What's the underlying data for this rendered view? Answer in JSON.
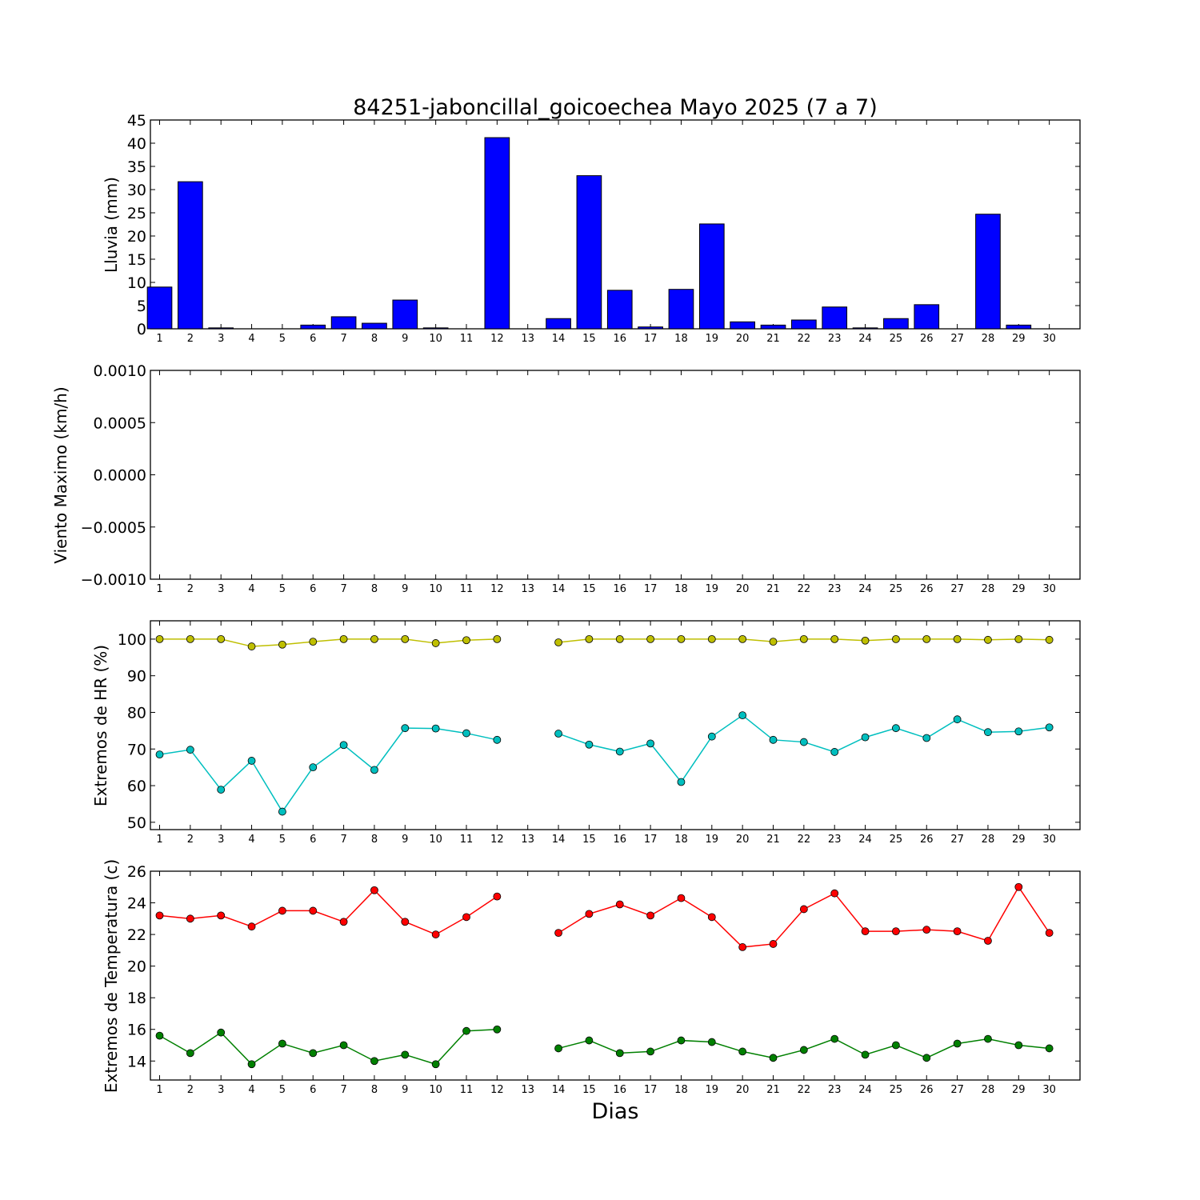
{
  "title": "84251-jaboncillal_goicoechea Mayo 2025  (7 a 7)",
  "xlabel": "Dias",
  "days": [
    1,
    2,
    3,
    4,
    5,
    6,
    7,
    8,
    9,
    10,
    11,
    12,
    13,
    14,
    15,
    16,
    17,
    18,
    19,
    20,
    21,
    22,
    23,
    24,
    25,
    26,
    27,
    28,
    29,
    30
  ],
  "colors": {
    "rain": "#0000ff",
    "hr_max": "#bfbf00",
    "hr_min": "#00bfbf",
    "temp_max": "#ff0000",
    "temp_min": "#008000"
  },
  "chart_data": [
    {
      "type": "bar",
      "ylabel": "Lluvia (mm)",
      "ylim": [
        0,
        45
      ],
      "yticks": [
        "0",
        "5",
        "10",
        "15",
        "20",
        "25",
        "30",
        "35",
        "40",
        "45"
      ],
      "categories": [
        1,
        2,
        3,
        4,
        5,
        6,
        7,
        8,
        9,
        10,
        11,
        12,
        13,
        14,
        15,
        16,
        17,
        18,
        19,
        20,
        21,
        22,
        23,
        24,
        25,
        26,
        27,
        28,
        29,
        30
      ],
      "values": [
        9.0,
        31.7,
        0.2,
        0,
        0,
        0.8,
        2.6,
        1.2,
        6.2,
        0.2,
        0,
        41.2,
        0,
        2.2,
        33.0,
        8.3,
        0.4,
        8.5,
        22.6,
        1.5,
        0.8,
        1.9,
        4.7,
        0.2,
        2.2,
        5.2,
        0,
        24.7,
        0.8,
        0
      ]
    },
    {
      "type": "line",
      "ylabel": "Viento Maximo (km/h)",
      "ylim": [
        -0.001,
        0.001
      ],
      "yticks": [
        "0.0010",
        "0.0005",
        "0.0000",
        "−0.0005",
        "−0.0010"
      ],
      "series": []
    },
    {
      "type": "line",
      "ylabel": "Extremos de HR (%)",
      "ylim": [
        48,
        105
      ],
      "yticks": [
        "50",
        "60",
        "70",
        "80",
        "90",
        "100"
      ],
      "series": [
        {
          "values": [
            100,
            100,
            100,
            98,
            98.5,
            99.3,
            100,
            100,
            100,
            98.9,
            99.7,
            100,
            null,
            99.1,
            100,
            100,
            100,
            100,
            100,
            100,
            99.3,
            100,
            100,
            99.6,
            100,
            100,
            100,
            99.8,
            100,
            99.8
          ]
        },
        {
          "values": [
            68.5,
            69.8,
            58.9,
            66.8,
            52.9,
            65.0,
            71.1,
            64.3,
            75.7,
            75.6,
            74.3,
            72.5,
            null,
            74.2,
            71.2,
            69.3,
            71.5,
            61.0,
            73.4,
            79.2,
            72.5,
            71.9,
            69.2,
            73.2,
            75.7,
            73.0,
            78.1,
            74.6,
            74.8,
            75.9
          ]
        }
      ]
    },
    {
      "type": "line",
      "ylabel": "Extremos de Temperatura (c)",
      "ylim": [
        12.8,
        26
      ],
      "yticks": [
        "14",
        "16",
        "18",
        "20",
        "22",
        "24",
        "26"
      ],
      "series": [
        {
          "values": [
            23.2,
            23.0,
            23.2,
            22.5,
            23.5,
            23.5,
            22.8,
            24.8,
            22.8,
            22.0,
            23.1,
            24.4,
            null,
            22.1,
            23.3,
            23.9,
            23.2,
            24.3,
            23.1,
            21.2,
            21.4,
            23.6,
            24.6,
            22.2,
            22.2,
            22.3,
            22.2,
            21.6,
            25.0,
            22.1
          ]
        },
        {
          "values": [
            15.6,
            14.5,
            15.8,
            13.8,
            15.1,
            14.5,
            15.0,
            14.0,
            14.4,
            13.8,
            15.9,
            16.0,
            null,
            14.8,
            15.3,
            14.5,
            14.6,
            15.3,
            15.2,
            14.6,
            14.2,
            14.7,
            15.4,
            14.4,
            15.0,
            14.2,
            15.1,
            15.4,
            15.0,
            14.8
          ]
        }
      ]
    }
  ]
}
